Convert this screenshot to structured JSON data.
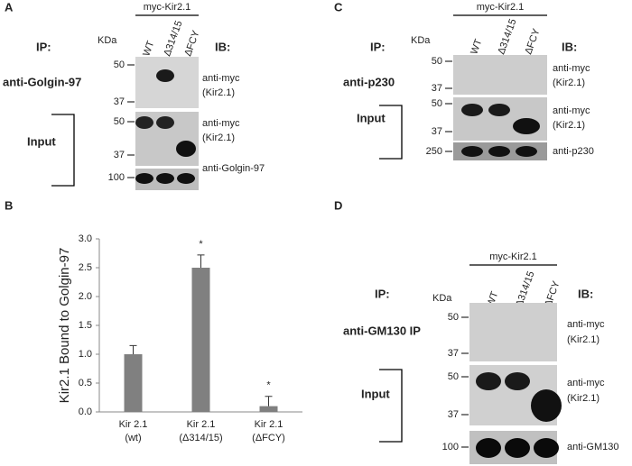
{
  "panel_a": {
    "letter": "A",
    "construct": "myc-Kir2.1",
    "kda_label": "KDa",
    "lanes": [
      "WT",
      "Δ314/15",
      "ΔFCY"
    ],
    "ip_label": "IP:",
    "ib_label": "IB:",
    "ip_antibody": "anti-Golgin-97",
    "input_label": "Input",
    "mw_markers": [
      50,
      37,
      50,
      37,
      100
    ],
    "ib_labels": [
      [
        "anti-myc",
        "(Kir2.1)"
      ],
      [
        "anti-myc",
        "(Kir2.1)"
      ],
      [
        "anti-Golgin-97"
      ]
    ]
  },
  "panel_c": {
    "letter": "C",
    "construct": "myc-Kir2.1",
    "kda_label": "KDa",
    "lanes": [
      "WT",
      "Δ314/15",
      "ΔFCY"
    ],
    "ip_label": "IP:",
    "ib_label": "IB:",
    "ip_antibody": "anti-p230",
    "input_label": "Input",
    "mw_markers": [
      50,
      37,
      50,
      37,
      250
    ],
    "ib_labels": [
      [
        "anti-myc",
        "(Kir2.1)"
      ],
      [
        "anti-myc",
        "(Kir2.1)"
      ],
      [
        "anti-p230"
      ]
    ]
  },
  "panel_d": {
    "letter": "D",
    "construct": "myc-Kir2.1",
    "kda_label": "KDa",
    "lanes": [
      "WT",
      "Δ314/15",
      "ΔFCY"
    ],
    "ip_label": "IP:",
    "ib_label": "IB:",
    "ip_antibody": "anti-GM130 IP",
    "input_label": "Input",
    "mw_markers": [
      50,
      37,
      50,
      37,
      100
    ],
    "ib_labels": [
      [
        "anti-myc",
        "(Kir2.1)"
      ],
      [
        "anti-myc",
        "(Kir2.1)"
      ],
      [
        "anti-GM130"
      ]
    ]
  },
  "chart_data": {
    "type": "bar",
    "panel_letter": "B",
    "ylabel": "Kir2.1 Bound to Golgin-97",
    "categories": [
      [
        "Kir 2.1",
        "(wt)"
      ],
      [
        "Kir 2.1",
        "(Δ314/15)"
      ],
      [
        "Kir 2.1",
        "(ΔFCY)"
      ]
    ],
    "values": [
      1.0,
      2.5,
      0.1
    ],
    "errors": [
      0.15,
      0.22,
      0.17
    ],
    "significance": [
      null,
      "*",
      "*"
    ],
    "color": "#808080",
    "ylim": [
      0,
      3.0
    ],
    "yticks": [
      {
        "value": 0,
        "label": "0.0"
      },
      0.5,
      {
        "value": 1,
        "label": "1.0"
      },
      1.5,
      {
        "value": 2,
        "label": "2.0"
      },
      2.5,
      {
        "value": 3,
        "label": "3.0"
      }
    ]
  }
}
